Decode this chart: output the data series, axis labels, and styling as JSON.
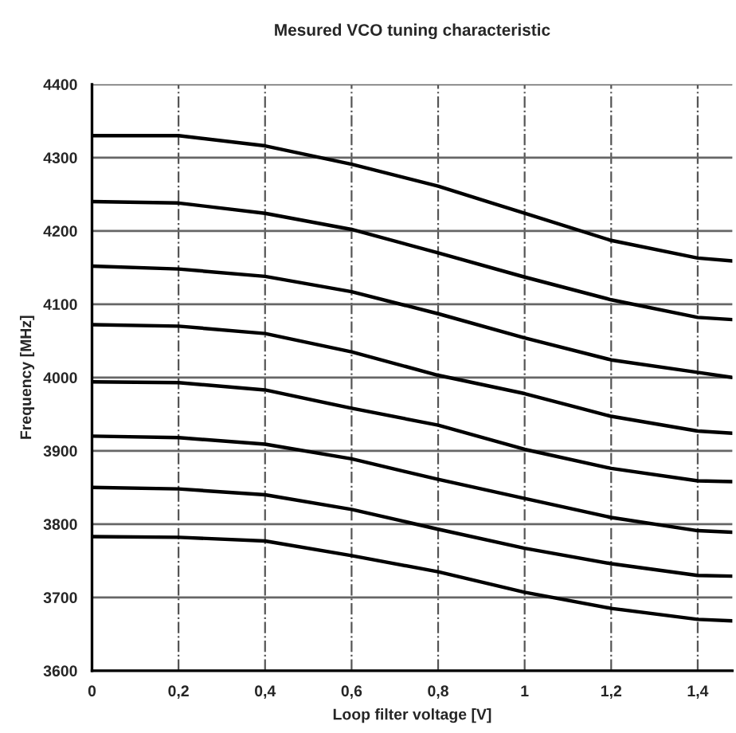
{
  "chart_data": {
    "type": "line",
    "title": "Mesured VCO tuning characteristic",
    "xlabel": "Loop filter voltage [V]",
    "ylabel": "Frequency [MHz]",
    "x": [
      0,
      0.2,
      0.4,
      0.6,
      0.8,
      1.0,
      1.2,
      1.4,
      1.48
    ],
    "series": [
      {
        "color": "#000000",
        "values": [
          4330,
          4330,
          4316,
          4291,
          4261,
          4224,
          4187,
          4163,
          4159
        ]
      },
      {
        "color": "#000000",
        "values": [
          4240,
          4238,
          4224,
          4202,
          4170,
          4137,
          4106,
          4082,
          4079
        ]
      },
      {
        "color": "#000000",
        "values": [
          4152,
          4148,
          4138,
          4117,
          4087,
          4054,
          4024,
          4007,
          4000
        ]
      },
      {
        "color": "#000000",
        "values": [
          4072,
          4070,
          4060,
          4035,
          4003,
          3978,
          3947,
          3927,
          3924
        ]
      },
      {
        "color": "#000000",
        "values": [
          3994,
          3993,
          3983,
          3958,
          3935,
          3902,
          3876,
          3859,
          3858
        ]
      },
      {
        "color": "#000000",
        "values": [
          3920,
          3918,
          3909,
          3889,
          3861,
          3835,
          3809,
          3791,
          3789
        ]
      },
      {
        "color": "#000000",
        "values": [
          3850,
          3848,
          3840,
          3820,
          3793,
          3767,
          3746,
          3730,
          3729
        ]
      },
      {
        "color": "#000000",
        "values": [
          3783,
          3782,
          3777,
          3757,
          3735,
          3707,
          3685,
          3670,
          3668
        ]
      }
    ],
    "xlim": [
      0,
      1.48
    ],
    "ylim": [
      3600,
      4400
    ],
    "xticks": [
      0,
      {
        "value": 0.2,
        "label": "0,2"
      },
      {
        "value": 0.4,
        "label": "0,4"
      },
      {
        "value": 0.6,
        "label": "0,6"
      },
      {
        "value": 0.8,
        "label": "0,8"
      },
      1,
      {
        "value": 1.2,
        "label": "1,2"
      },
      {
        "value": 1.4,
        "label": "1,4"
      }
    ],
    "yticks": [
      3600,
      3700,
      3800,
      3900,
      4000,
      4100,
      4200,
      4300,
      4400
    ],
    "grid": true,
    "marker": "none",
    "line_style": "solid"
  }
}
